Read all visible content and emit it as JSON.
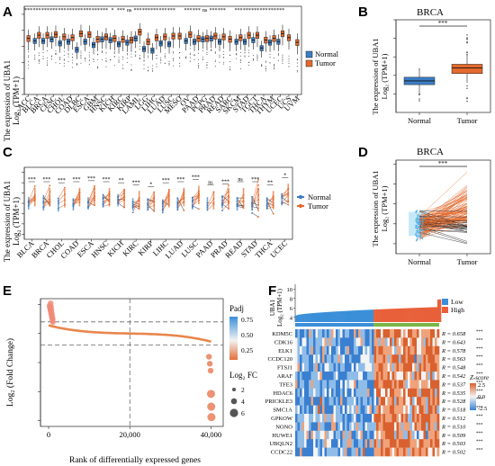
{
  "colors": {
    "normal": "#3B7CC4",
    "tumor": "#E36A2E",
    "low": "#3B8FD9",
    "high": "#E8603A",
    "heat_low": "#3a7fd0",
    "heat_mid": "#f4f4f4",
    "heat_high": "#d9612f",
    "sig": "#f08b78"
  },
  "chart_data": [
    {
      "panel": "A",
      "type": "box",
      "ylabel_line1": "The expression  of UBA1",
      "ylabel_line2": "Log₂ (TPM+1)",
      "ylim": [
        0,
        11
      ],
      "yticks": [
        0,
        2,
        4,
        6,
        8,
        10
      ],
      "legend": [
        "Normal",
        "Tumor"
      ],
      "categories": [
        "ACC",
        "BLCA",
        "BRCA",
        "CESC",
        "CHOL",
        "COAD",
        "DLBC",
        "ESCA",
        "GBM",
        "HNSC",
        "KICH",
        "KIRC",
        "KIRP",
        "LAML",
        "LGG",
        "LIHC",
        "LUAD",
        "LUSC",
        "MESO",
        "OV",
        "PAAD",
        "PCPG",
        "PRAD",
        "READ",
        "SARC",
        "SKCM",
        "STAD",
        "TGCT",
        "THCA",
        "THYM",
        "UCEC",
        "UCS",
        "UVM"
      ],
      "normal_median": [
        null,
        6.7,
        6.7,
        6.9,
        6.4,
        6.6,
        5.6,
        6.6,
        6.2,
        6.9,
        6.8,
        6.3,
        6.5,
        7.0,
        5.7,
        5.5,
        6.4,
        6.3,
        null,
        6.7,
        6.6,
        6.9,
        7.0,
        6.6,
        null,
        6.6,
        6.6,
        6.8,
        5.8,
        6.5,
        6.6,
        null,
        null
      ],
      "tumor_median": [
        7.0,
        7.4,
        7.4,
        7.5,
        7.2,
        7.1,
        7.6,
        7.5,
        6.9,
        7.2,
        7.0,
        6.9,
        6.8,
        7.8,
        6.6,
        7.1,
        7.2,
        7.3,
        7.3,
        7.5,
        7.0,
        7.0,
        7.3,
        7.2,
        6.9,
        7.1,
        7.4,
        7.4,
        6.8,
        7.0,
        7.6,
        7.1,
        6.5
      ],
      "significance": [
        "***",
        "***",
        "***",
        "***",
        "***",
        "***",
        "***",
        "***",
        "***",
        "***",
        "*",
        "***",
        "ns",
        "***",
        "***",
        "***",
        "***",
        "***",
        "",
        "***",
        "***",
        "ns",
        "***",
        "***",
        "",
        "***",
        "***",
        "***",
        "***",
        "***",
        "***",
        "",
        ""
      ]
    },
    {
      "panel": "B",
      "type": "box",
      "title": "BRCA",
      "ylabel_line1": "The expression  of UBA1",
      "ylabel_line2": "Log₂ (TPM+1)",
      "ylim": [
        5,
        10
      ],
      "yticks": [
        6,
        7,
        8,
        9,
        10
      ],
      "categories": [
        "Normal",
        "Tumor"
      ],
      "median": [
        6.7,
        7.4
      ],
      "q1": [
        6.5,
        7.1
      ],
      "q3": [
        6.9,
        7.6
      ],
      "whisker_low": [
        6.0,
        6.6
      ],
      "whisker_high": [
        7.3,
        8.1
      ],
      "significance": "***"
    },
    {
      "panel": "C",
      "type": "paired",
      "ylabel_line1": "The expression  of UBA1",
      "ylabel_line2": "Log₂ (TPM+1)",
      "ylim": [
        3.5,
        10.5
      ],
      "yticks": [
        4,
        5,
        6,
        7,
        8,
        9,
        10
      ],
      "legend": [
        "Normal",
        "Tumor"
      ],
      "categories": [
        "BLCA",
        "BRCA",
        "CHOL",
        "COAD",
        "ESCA",
        "HNSC",
        "KICH",
        "KIRC",
        "KIRP",
        "LIHC",
        "LUAD",
        "LUSC",
        "PAAD",
        "PRAD",
        "READ",
        "STAD",
        "THCA",
        "UCEC"
      ],
      "normal_center": [
        7.0,
        6.9,
        6.8,
        6.9,
        7.0,
        7.2,
        7.3,
        6.9,
        6.9,
        6.8,
        6.9,
        7.0,
        7.0,
        7.1,
        6.9,
        7.0,
        7.0,
        7.4
      ],
      "tumor_center": [
        7.6,
        7.6,
        7.5,
        7.6,
        7.7,
        7.6,
        7.5,
        7.3,
        7.1,
        7.5,
        7.6,
        7.8,
        7.3,
        7.4,
        7.6,
        7.6,
        7.3,
        8.0
      ],
      "significance": [
        "***",
        "***",
        "***",
        "***",
        "***",
        "***",
        "**",
        "***",
        "*",
        "***",
        "***",
        "***",
        "ns",
        "***",
        "ns",
        "***",
        "**",
        "*"
      ]
    },
    {
      "panel": "D",
      "type": "paired",
      "title": "BRCA",
      "ylabel_line1": "The expression  of UBA1",
      "ylabel_line2": "Log₂ (TPM+1)",
      "ylim": [
        5.5,
        10.2
      ],
      "yticks": [
        6,
        7,
        8,
        9,
        10
      ],
      "categories": [
        "Normal",
        "Tumor"
      ],
      "normal_range": [
        6.0,
        8.3
      ],
      "tumor_range": [
        6.0,
        9.6
      ],
      "significance": "***"
    },
    {
      "panel": "E",
      "type": "scatter",
      "xlabel": "Rank of differentially expressed genes",
      "ylabel": "Log₂ (Fold Change)",
      "xlim": [
        -2000,
        43000
      ],
      "ylim": [
        -8,
        3
      ],
      "xticks": [
        0,
        20000,
        40000
      ],
      "xtick_labels": [
        "0",
        "20,000",
        "40,000"
      ],
      "yticks": [
        2.5,
        0.0,
        -2.5,
        -5.0,
        -7.5
      ],
      "ytick_labels": [
        "2.5",
        "0.0",
        "-2.5",
        "-5.0",
        "-7.5"
      ],
      "hlines": [
        1,
        -1
      ],
      "vline": 20000,
      "legend_padj_title": "Padj",
      "padj_ticks": [
        "0.75",
        "0.50",
        "0.25"
      ],
      "legend_fc_title": "Log₂ FC",
      "fc_sizes": [
        "2",
        "4",
        "6"
      ],
      "highlight_points": [
        [
          500,
          2.6
        ],
        [
          600,
          2.3
        ],
        [
          700,
          2.0
        ],
        [
          800,
          1.7
        ],
        [
          900,
          1.45
        ],
        [
          1000,
          1.25
        ],
        [
          39500,
          -2.0
        ],
        [
          39700,
          -2.6
        ],
        [
          39900,
          -3.2
        ],
        [
          40000,
          -5.2
        ],
        [
          40050,
          -6.3
        ],
        [
          40100,
          -7.2
        ]
      ]
    },
    {
      "panel": "F",
      "type": "heatmap",
      "top_label_line1": "UBA1",
      "top_label_line2": "Log₂ (TPM+1)",
      "top_yticks": [
        "10",
        "8",
        "6",
        "4"
      ],
      "legend_groups": [
        "Low",
        "High"
      ],
      "zscore_title": "Z-score",
      "zscore_ticks": [
        "2.5",
        "0.0",
        "-2.5"
      ],
      "genes": [
        "KDM5C",
        "CDK16",
        "ELK1",
        "CCDC120",
        "FTSJ1",
        "ARAF",
        "TFE3",
        "HDAC6",
        "PRICKLE3",
        "SMC1A",
        "GPKOW",
        "NONO",
        "HUWE1",
        "UBQLN2",
        "CCDC22"
      ],
      "r_values": [
        "R = 0.658",
        "R = 0.643",
        "R = 0.578",
        "R = 0.563",
        "R = 0.548",
        "R = 0.542",
        "R = 0.537",
        "R = 0.535",
        "R = 0.528",
        "R = 0.518",
        "R = 0.512",
        "R = 0.510",
        "R = 0.509",
        "R = 0.503",
        "R = 0.502"
      ],
      "r_sig": "***"
    }
  ],
  "panel_labels": [
    "A",
    "B",
    "C",
    "D",
    "E",
    "F"
  ]
}
